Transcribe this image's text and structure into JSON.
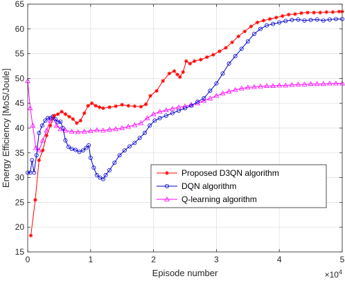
{
  "chart_data": {
    "type": "line",
    "xlabel": "Episode number",
    "ylabel": "Energy Efficiency [MoS/Joule]",
    "x_multiplier_label": "×10",
    "x_multiplier_exponent": "4",
    "xlim": [
      0,
      50000
    ],
    "ylim": [
      15,
      65
    ],
    "xticks": [
      0,
      10000,
      20000,
      30000,
      40000,
      50000
    ],
    "xtick_labels": [
      "0",
      "1",
      "2",
      "3",
      "4",
      "5"
    ],
    "yticks": [
      15,
      20,
      25,
      30,
      35,
      40,
      45,
      50,
      55,
      60,
      65
    ],
    "grid": true,
    "legend_position": "lower-right",
    "series": [
      {
        "name": "Proposed D3QN algorithm",
        "color": "#ff0000",
        "marker": "asterisk",
        "points": [
          [
            500,
            18.3
          ],
          [
            1200,
            25.5
          ],
          [
            1800,
            33.5
          ],
          [
            2400,
            35.5
          ],
          [
            3000,
            38.5
          ],
          [
            3600,
            40.5
          ],
          [
            4200,
            42.5
          ],
          [
            4800,
            42.8
          ],
          [
            5400,
            43.3
          ],
          [
            6000,
            42.8
          ],
          [
            6600,
            42.3
          ],
          [
            7200,
            41.8
          ],
          [
            7800,
            41.0
          ],
          [
            8400,
            41.5
          ],
          [
            9000,
            43.0
          ],
          [
            9600,
            44.5
          ],
          [
            10200,
            45.0
          ],
          [
            10800,
            44.5
          ],
          [
            11400,
            44.2
          ],
          [
            12000,
            44.0
          ],
          [
            13000,
            44.2
          ],
          [
            14000,
            44.4
          ],
          [
            15000,
            44.7
          ],
          [
            16000,
            44.5
          ],
          [
            17000,
            44.4
          ],
          [
            18000,
            44.3
          ],
          [
            18800,
            44.8
          ],
          [
            19500,
            46.5
          ],
          [
            20500,
            47.5
          ],
          [
            21500,
            49.5
          ],
          [
            22500,
            51.0
          ],
          [
            23300,
            51.5
          ],
          [
            23800,
            50.8
          ],
          [
            24200,
            50.3
          ],
          [
            24700,
            51.3
          ],
          [
            25200,
            53.5
          ],
          [
            25800,
            53.0
          ],
          [
            26500,
            53.5
          ],
          [
            27500,
            53.8
          ],
          [
            28500,
            54.3
          ],
          [
            29500,
            54.8
          ],
          [
            30500,
            55.5
          ],
          [
            31500,
            56.2
          ],
          [
            32500,
            57.3
          ],
          [
            33500,
            58.5
          ],
          [
            34500,
            59.5
          ],
          [
            35500,
            60.5
          ],
          [
            36500,
            61.3
          ],
          [
            37500,
            61.7
          ],
          [
            38500,
            62.0
          ],
          [
            39500,
            62.3
          ],
          [
            40500,
            62.6
          ],
          [
            41500,
            62.9
          ],
          [
            42500,
            63.0
          ],
          [
            43500,
            63.2
          ],
          [
            44500,
            63.3
          ],
          [
            45500,
            63.3
          ],
          [
            46500,
            63.3
          ],
          [
            47500,
            63.4
          ],
          [
            48500,
            63.4
          ],
          [
            49500,
            63.5
          ],
          [
            50000,
            63.5
          ]
        ]
      },
      {
        "name": "DQN algorithm",
        "color": "#0000cc",
        "marker": "circle",
        "points": [
          [
            0,
            31.0
          ],
          [
            400,
            31.0
          ],
          [
            700,
            33.5
          ],
          [
            1000,
            31.0
          ],
          [
            1400,
            34.5
          ],
          [
            1800,
            39.0
          ],
          [
            2300,
            40.5
          ],
          [
            2800,
            41.5
          ],
          [
            3200,
            42.0
          ],
          [
            3600,
            42.0
          ],
          [
            4000,
            42.3
          ],
          [
            4400,
            41.8
          ],
          [
            4800,
            41.2
          ],
          [
            5200,
            41.3
          ],
          [
            5600,
            40.0
          ],
          [
            6000,
            37.5
          ],
          [
            6500,
            36.2
          ],
          [
            7000,
            35.8
          ],
          [
            7600,
            35.6
          ],
          [
            8200,
            35.2
          ],
          [
            8800,
            35.5
          ],
          [
            9300,
            36.0
          ],
          [
            9700,
            36.5
          ],
          [
            10000,
            34.0
          ],
          [
            10500,
            32.0
          ],
          [
            11000,
            30.5
          ],
          [
            11500,
            30.0
          ],
          [
            12000,
            29.7
          ],
          [
            12400,
            30.5
          ],
          [
            13000,
            31.5
          ],
          [
            13800,
            33.0
          ],
          [
            14600,
            34.5
          ],
          [
            15400,
            35.5
          ],
          [
            16200,
            36.3
          ],
          [
            17000,
            37.0
          ],
          [
            17800,
            38.0
          ],
          [
            18600,
            39.0
          ],
          [
            19400,
            40.5
          ],
          [
            20200,
            41.5
          ],
          [
            21000,
            42.0
          ],
          [
            22000,
            42.5
          ],
          [
            23000,
            43.0
          ],
          [
            24000,
            43.5
          ],
          [
            25000,
            44.0
          ],
          [
            26000,
            44.5
          ],
          [
            27000,
            45.3
          ],
          [
            28000,
            46.0
          ],
          [
            29000,
            47.5
          ],
          [
            30000,
            49.0
          ],
          [
            31000,
            51.0
          ],
          [
            32000,
            53.0
          ],
          [
            33000,
            54.5
          ],
          [
            34000,
            56.0
          ],
          [
            35000,
            57.5
          ],
          [
            36000,
            59.0
          ],
          [
            37000,
            60.0
          ],
          [
            38000,
            60.7
          ],
          [
            39000,
            61.0
          ],
          [
            40000,
            61.3
          ],
          [
            41000,
            61.6
          ],
          [
            42000,
            61.8
          ],
          [
            43000,
            61.9
          ],
          [
            44000,
            61.7
          ],
          [
            45000,
            61.8
          ],
          [
            46000,
            61.9
          ],
          [
            47000,
            61.7
          ],
          [
            48000,
            61.9
          ],
          [
            49000,
            62.0
          ],
          [
            50000,
            62.0
          ]
        ]
      },
      {
        "name": "Q-learning algorithm",
        "color": "#ff00ff",
        "marker": "triangle",
        "points": [
          [
            0,
            49.5
          ],
          [
            400,
            44.0
          ],
          [
            800,
            40.5
          ],
          [
            1300,
            36.0
          ],
          [
            1800,
            35.5
          ],
          [
            2400,
            37.5
          ],
          [
            3000,
            39.5
          ],
          [
            3600,
            41.5
          ],
          [
            4100,
            42.0
          ],
          [
            4600,
            40.5
          ],
          [
            5200,
            39.8
          ],
          [
            6000,
            39.5
          ],
          [
            7000,
            39.3
          ],
          [
            8000,
            39.2
          ],
          [
            9000,
            39.3
          ],
          [
            10000,
            39.4
          ],
          [
            11000,
            39.6
          ],
          [
            12000,
            39.5
          ],
          [
            13000,
            39.7
          ],
          [
            14000,
            39.8
          ],
          [
            15000,
            40.0
          ],
          [
            16000,
            40.3
          ],
          [
            17000,
            40.6
          ],
          [
            18000,
            41.0
          ],
          [
            19000,
            42.0
          ],
          [
            20000,
            42.8
          ],
          [
            21000,
            43.3
          ],
          [
            22000,
            43.6
          ],
          [
            23000,
            43.9
          ],
          [
            24000,
            44.2
          ],
          [
            25000,
            44.4
          ],
          [
            26000,
            44.7
          ],
          [
            27000,
            45.0
          ],
          [
            28000,
            45.5
          ],
          [
            29000,
            46.0
          ],
          [
            30000,
            46.5
          ],
          [
            31000,
            47.0
          ],
          [
            32000,
            47.4
          ],
          [
            33000,
            47.7
          ],
          [
            34000,
            48.0
          ],
          [
            35000,
            48.2
          ],
          [
            36000,
            48.3
          ],
          [
            37000,
            48.4
          ],
          [
            38000,
            48.5
          ],
          [
            39000,
            48.5
          ],
          [
            40000,
            48.6
          ],
          [
            41000,
            48.6
          ],
          [
            42000,
            48.7
          ],
          [
            43000,
            48.8
          ],
          [
            44000,
            48.8
          ],
          [
            45000,
            48.9
          ],
          [
            46000,
            48.9
          ],
          [
            47000,
            48.9
          ],
          [
            48000,
            49.0
          ],
          [
            49000,
            49.0
          ],
          [
            50000,
            49.0
          ]
        ]
      }
    ]
  }
}
